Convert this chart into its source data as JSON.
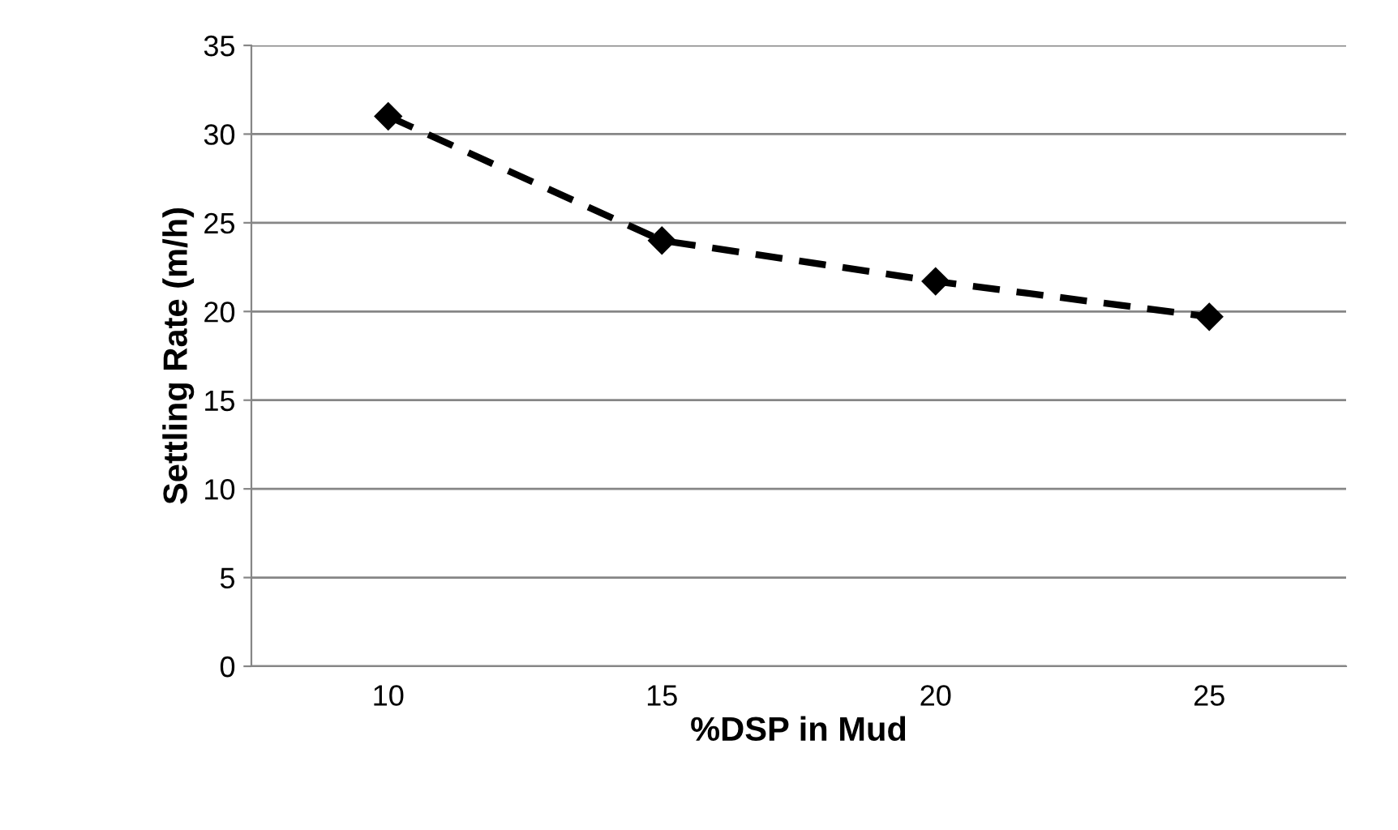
{
  "chart_data": {
    "type": "line",
    "xlabel": "%DSP in Mud",
    "ylabel": "Settling Rate (m/h)",
    "categories": [
      "10",
      "15",
      "20",
      "25"
    ],
    "series": [
      {
        "color": "#000000",
        "values": [
          31,
          24,
          21.7,
          19.7
        ]
      }
    ],
    "ylim": [
      0,
      35
    ],
    "yticks": [
      0,
      5,
      10,
      15,
      20,
      25,
      30,
      35
    ],
    "grid": "y",
    "marker": "diamond",
    "line_style": "dashed",
    "legend": false
  }
}
